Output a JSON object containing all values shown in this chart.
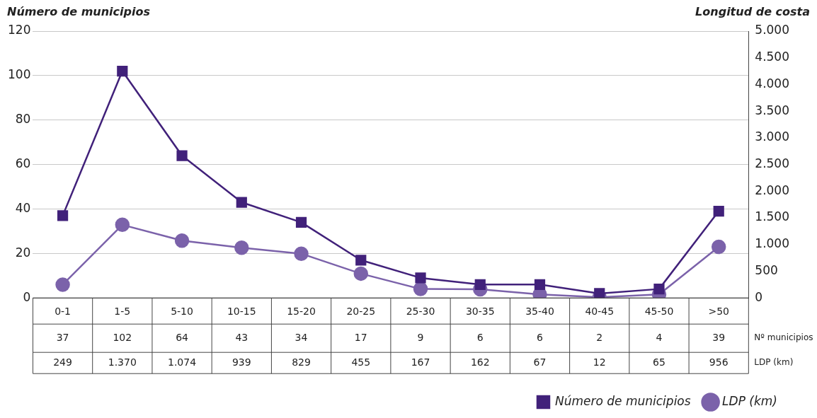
{
  "chart_data": {
    "type": "line",
    "ylabel": "Número de municipios",
    "y2label": "Longitud de costa",
    "categories": [
      "0-1",
      "1-5",
      "5-10",
      "10-15",
      "15-20",
      "20-25",
      "25-30",
      "30-35",
      "35-40",
      "40-45",
      "45-50",
      ">50"
    ],
    "series": [
      {
        "name": "Número de municipios",
        "color": "#41217a",
        "marker": "square",
        "values": [
          37,
          102,
          64,
          43,
          34,
          17,
          9,
          6,
          6,
          2,
          4,
          39
        ],
        "value_labels": [
          "37",
          "102",
          "64",
          "43",
          "34",
          "17",
          "9",
          "6",
          "6",
          "2",
          "4",
          "39"
        ]
      },
      {
        "name": "LDP (km)",
        "color": "#7b62aa",
        "marker": "circle",
        "axis": "y2",
        "values": [
          249,
          1370,
          1074,
          939,
          829,
          455,
          167,
          162,
          67,
          12,
          65,
          956
        ],
        "value_labels": [
          "249",
          "1.370",
          "1.074",
          "939",
          "829",
          "455",
          "167",
          "162",
          "67",
          "12",
          "65",
          "956"
        ]
      }
    ],
    "ylim": [
      0,
      120
    ],
    "yticks": [
      0,
      20,
      40,
      60,
      80,
      100,
      120
    ],
    "y2lim": [
      0,
      5000
    ],
    "y2ticks": [
      0,
      500,
      {
        "value": 1000,
        "label": "1.000"
      },
      {
        "value": 1500,
        "label": "1.500"
      },
      {
        "value": 2000,
        "label": "2.000"
      },
      {
        "value": 2500,
        "label": "2.500"
      },
      {
        "value": 3000,
        "label": "3.000"
      },
      {
        "value": 3500,
        "label": "3.500"
      },
      {
        "value": 4000,
        "label": "4.000"
      },
      {
        "value": 4500,
        "label": "4.500"
      },
      {
        "value": 5000,
        "label": "5.000"
      }
    ],
    "annotations": [
      "Nº municipios",
      "LDP (km)"
    ],
    "grid": "y",
    "legend": "bottom right",
    "line_style": "solid"
  }
}
